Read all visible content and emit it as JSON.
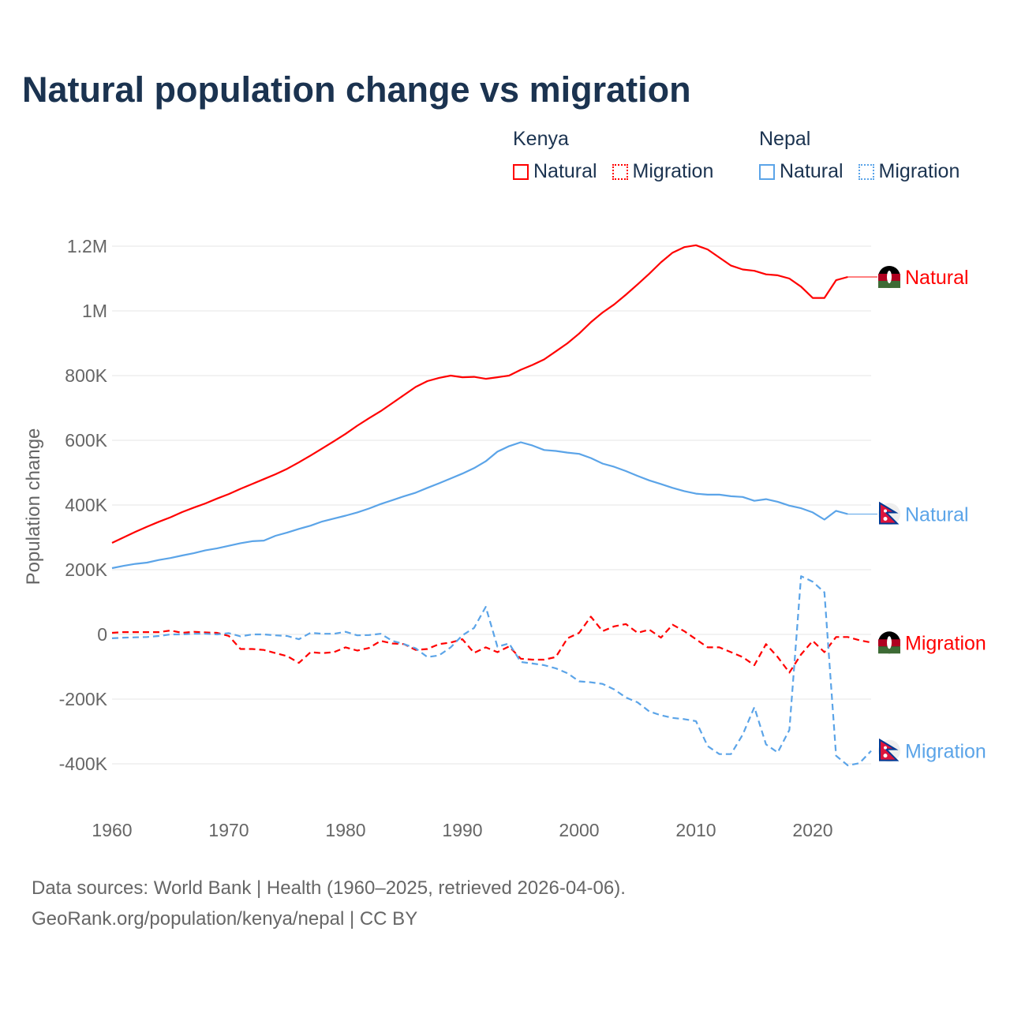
{
  "chart_data": {
    "type": "line",
    "title": "Natural population change vs migration",
    "ylabel": "Population change",
    "xlabel": "",
    "xlim": [
      1960,
      2025
    ],
    "ylim": [
      -500000,
      1200000
    ],
    "x_ticks": [
      1960,
      1970,
      1980,
      1990,
      2000,
      2010,
      2020
    ],
    "x_tick_labels": [
      "1960",
      "1970",
      "1980",
      "1990",
      "2000",
      "2010",
      "2020"
    ],
    "y_ticks": [
      -400000,
      -200000,
      0,
      200000,
      400000,
      600000,
      800000,
      1000000,
      1200000
    ],
    "y_tick_labels": [
      "-400K",
      "-200K",
      "0",
      "200K",
      "400K",
      "600K",
      "800K",
      "1M",
      "1.2M"
    ],
    "grid": true,
    "legend": {
      "placement": "top-right",
      "groups": [
        {
          "name": "Kenya",
          "items": [
            "Natural",
            "Migration"
          ]
        },
        {
          "name": "Nepal",
          "items": [
            "Natural",
            "Migration"
          ]
        }
      ]
    },
    "series": [
      {
        "name": "Kenya Natural",
        "label": "Natural",
        "country": "Kenya",
        "color": "#ff0000",
        "dash": "solid",
        "start_year": 1960,
        "values_k": [
          283,
          300,
          317,
          333,
          348,
          362,
          378,
          392,
          405,
          420,
          434,
          450,
          465,
          480,
          495,
          512,
          532,
          553,
          575,
          597,
          620,
          645,
          668,
          690,
          715,
          740,
          765,
          783,
          793,
          800,
          795,
          796,
          790,
          795,
          800,
          818,
          833,
          850,
          875,
          900,
          930,
          965,
          995,
          1020,
          1050,
          1082,
          1115,
          1150,
          1180,
          1197,
          1203,
          1190,
          1165,
          1140,
          1128,
          1124,
          1113,
          1110,
          1100,
          1075,
          1040,
          1040,
          1095,
          1105
        ]
      },
      {
        "name": "Nepal Natural",
        "label": "Natural",
        "country": "Nepal",
        "color": "#5ba4e8",
        "dash": "solid",
        "start_year": 1960,
        "values_k": [
          205,
          212,
          218,
          222,
          230,
          236,
          244,
          251,
          260,
          266,
          274,
          282,
          288,
          290,
          305,
          315,
          326,
          336,
          349,
          358,
          367,
          377,
          389,
          403,
          415,
          427,
          438,
          453,
          467,
          482,
          497,
          514,
          535,
          565,
          582,
          594,
          584,
          570,
          567,
          562,
          558,
          545,
          528,
          518,
          505,
          490,
          476,
          465,
          453,
          443,
          435,
          432,
          432,
          427,
          425,
          413,
          418,
          410,
          398,
          390,
          377,
          355,
          382,
          372
        ]
      },
      {
        "name": "Kenya Migration",
        "label": "Migration",
        "country": "Kenya",
        "color": "#ff0000",
        "dash": "dashed",
        "start_year": 1960,
        "values_k": [
          5,
          7,
          7,
          7,
          7,
          12,
          5,
          8,
          6,
          5,
          -5,
          -45,
          -45,
          -48,
          -58,
          -67,
          -88,
          -55,
          -58,
          -55,
          -40,
          -50,
          -42,
          -20,
          -28,
          -30,
          -48,
          -45,
          -30,
          -25,
          -15,
          -57,
          -40,
          -55,
          -37,
          -75,
          -78,
          -78,
          -70,
          -12,
          5,
          55,
          10,
          25,
          32,
          5,
          15,
          -10,
          30,
          10,
          -15,
          -40,
          -40,
          -55,
          -70,
          -95,
          -30,
          -70,
          -118,
          -62,
          -20,
          -55,
          -8,
          -8,
          -18,
          -25
        ]
      },
      {
        "name": "Nepal Migration",
        "label": "Migration",
        "country": "Nepal",
        "color": "#5ba4e8",
        "dash": "dashed",
        "start_year": 1960,
        "values_k": [
          -12,
          -10,
          -9,
          -8,
          -5,
          0,
          0,
          2,
          2,
          0,
          4,
          -6,
          0,
          0,
          -3,
          -5,
          -15,
          5,
          2,
          2,
          8,
          -3,
          -2,
          2,
          -20,
          -30,
          -43,
          -70,
          -65,
          -40,
          -3,
          20,
          85,
          -38,
          -28,
          -85,
          -90,
          -95,
          -105,
          -120,
          -145,
          -148,
          -153,
          -170,
          -195,
          -210,
          -238,
          -250,
          -258,
          -262,
          -268,
          -345,
          -370,
          -370,
          -310,
          -225,
          -340,
          -365,
          -295,
          180,
          163,
          130,
          -375,
          -405,
          -398,
          -360
        ]
      }
    ],
    "end_labels": [
      {
        "text": "Natural",
        "country": "Kenya",
        "value_k": 1105
      },
      {
        "text": "Natural",
        "country": "Nepal",
        "value_k": 372
      },
      {
        "text": "Migration",
        "country": "Kenya",
        "value_k": -25
      },
      {
        "text": "Migration",
        "country": "Nepal",
        "value_k": -360
      }
    ]
  },
  "source": {
    "line1": "Data sources: World Bank | Health (1960–2025, retrieved 2026-04-06).",
    "line2": "GeoRank.org/population/kenya/nepal | CC BY"
  }
}
